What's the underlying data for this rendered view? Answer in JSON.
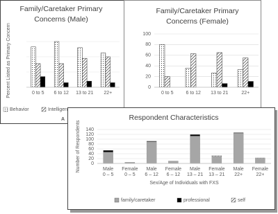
{
  "chart_data": [
    {
      "type": "bar",
      "title": [
        "Family/Caretaker Primary",
        "Concerns (Male)"
      ],
      "y_label": "Percent Listed as Primary Concern",
      "panel_label": "A",
      "categories": [
        "0 to 5",
        "6 to 12",
        "13 to 21",
        "22+"
      ],
      "ylim": [
        0,
        70
      ],
      "grid": true,
      "series": [
        {
          "name": "Behavior",
          "color": "#ffffff",
          "pattern": "dots",
          "values": [
            53,
            60,
            52,
            45
          ]
        },
        {
          "name": "Intelligence",
          "color": "#ffffff",
          "pattern": "hatch",
          "values": [
            31,
            31,
            38,
            40
          ]
        },
        {
          "color": "#000000",
          "values": [
            14,
            6,
            8,
            6
          ]
        }
      ]
    },
    {
      "type": "bar",
      "title": [
        "Family/Caretaker Primary",
        "Concerns (Female)"
      ],
      "categories": [
        "0 to 5",
        "6 to 12",
        "13 to 21",
        "22+"
      ],
      "ylim": [
        0,
        100
      ],
      "yticks": [
        0,
        20,
        40,
        60,
        80,
        100
      ],
      "grid": true,
      "series": [
        {
          "color": "#ffffff",
          "pattern": "dots",
          "values": [
            80,
            36,
            27,
            33
          ]
        },
        {
          "color": "#ffffff",
          "pattern": "hatch",
          "values": [
            20,
            63,
            65,
            55
          ]
        },
        {
          "color": "#000000",
          "values": [
            0,
            0,
            7,
            11
          ]
        }
      ]
    },
    {
      "type": "stacked_bar",
      "title": "Respondent Characteristics",
      "x_label": "Sex/Age of Individuals with FXS",
      "y_label": "Number of Respondents",
      "categories": [
        [
          "Male",
          "0 – 5"
        ],
        [
          "Female",
          "0 – 5"
        ],
        [
          "Male",
          "6 – 12"
        ],
        [
          "Female",
          "6 – 12"
        ],
        [
          "Male",
          "13 – 21"
        ],
        [
          "Female",
          "13 – 21"
        ],
        [
          "Male",
          "22+"
        ],
        [
          "Female",
          "22+"
        ]
      ],
      "ylim": [
        0,
        140
      ],
      "yticks": [
        0,
        20,
        40,
        60,
        80,
        100,
        120,
        140
      ],
      "grid": true,
      "series": [
        {
          "name": "family/caretaker",
          "color": "#a6a6a6",
          "values": [
            47,
            5,
            90,
            10,
            113,
            30,
            125,
            22
          ]
        },
        {
          "name": "professional",
          "color": "#000000",
          "values": [
            7,
            0,
            2,
            0,
            6,
            0,
            2,
            0
          ]
        },
        {
          "name": "self",
          "color": "#ffffff",
          "pattern": "hatch",
          "values": [
            0,
            0,
            0,
            0,
            0,
            2,
            0,
            1
          ]
        }
      ]
    }
  ]
}
